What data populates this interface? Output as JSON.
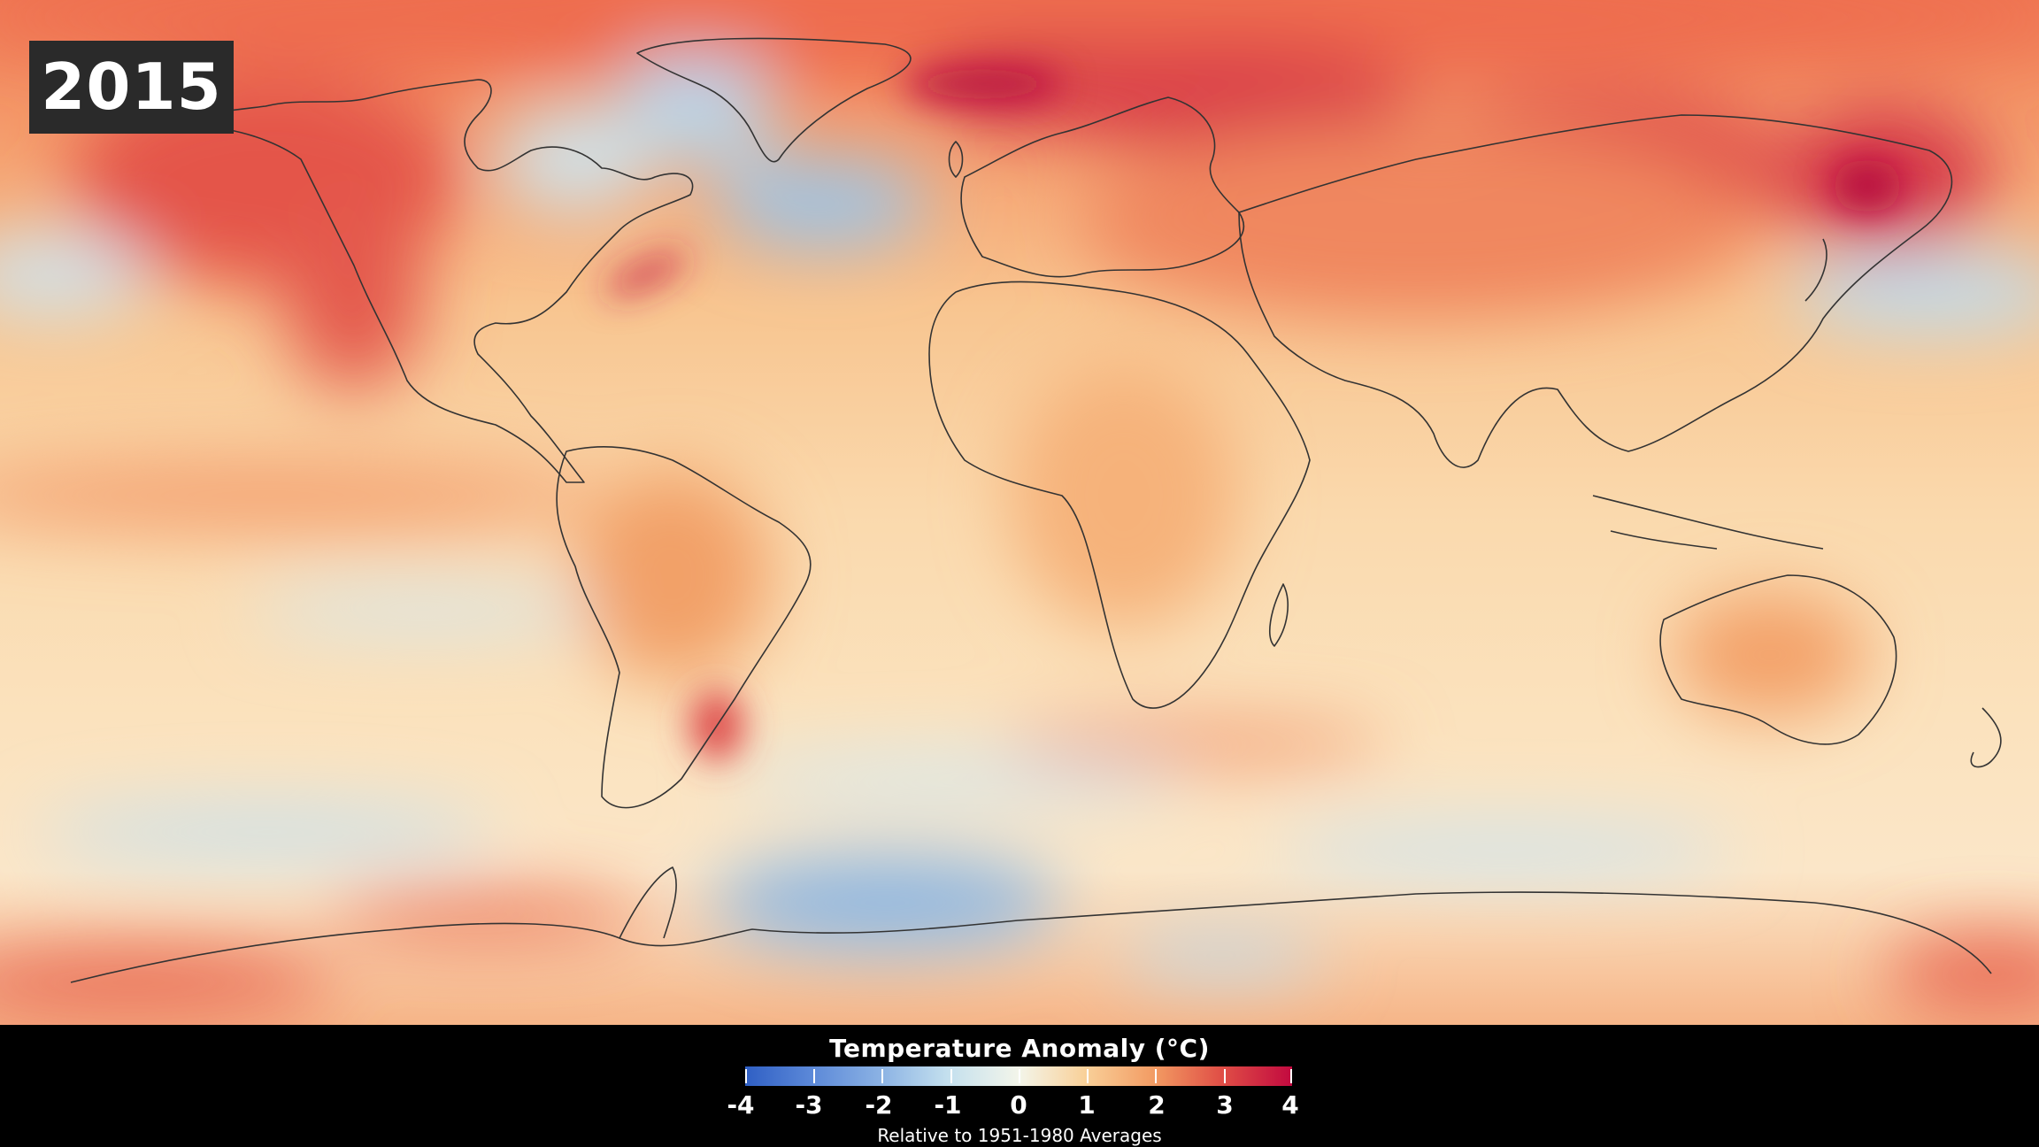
{
  "year": "2015",
  "legend": {
    "title": "Temperature Anomaly (°C)",
    "subtitle": "Relative to 1951-1980 Averages",
    "ticks": [
      "-4",
      "-3",
      "-2",
      "-1",
      "0",
      "1",
      "2",
      "3",
      "4"
    ],
    "colors": [
      "#2f5fc4",
      "#8cb3e4",
      "#f3f5ea",
      "#f29a62",
      "#c2093f"
    ]
  },
  "map": {
    "projection": "equirectangular",
    "base_color": "#f9d3a6",
    "coastline_color": "#333333"
  }
}
